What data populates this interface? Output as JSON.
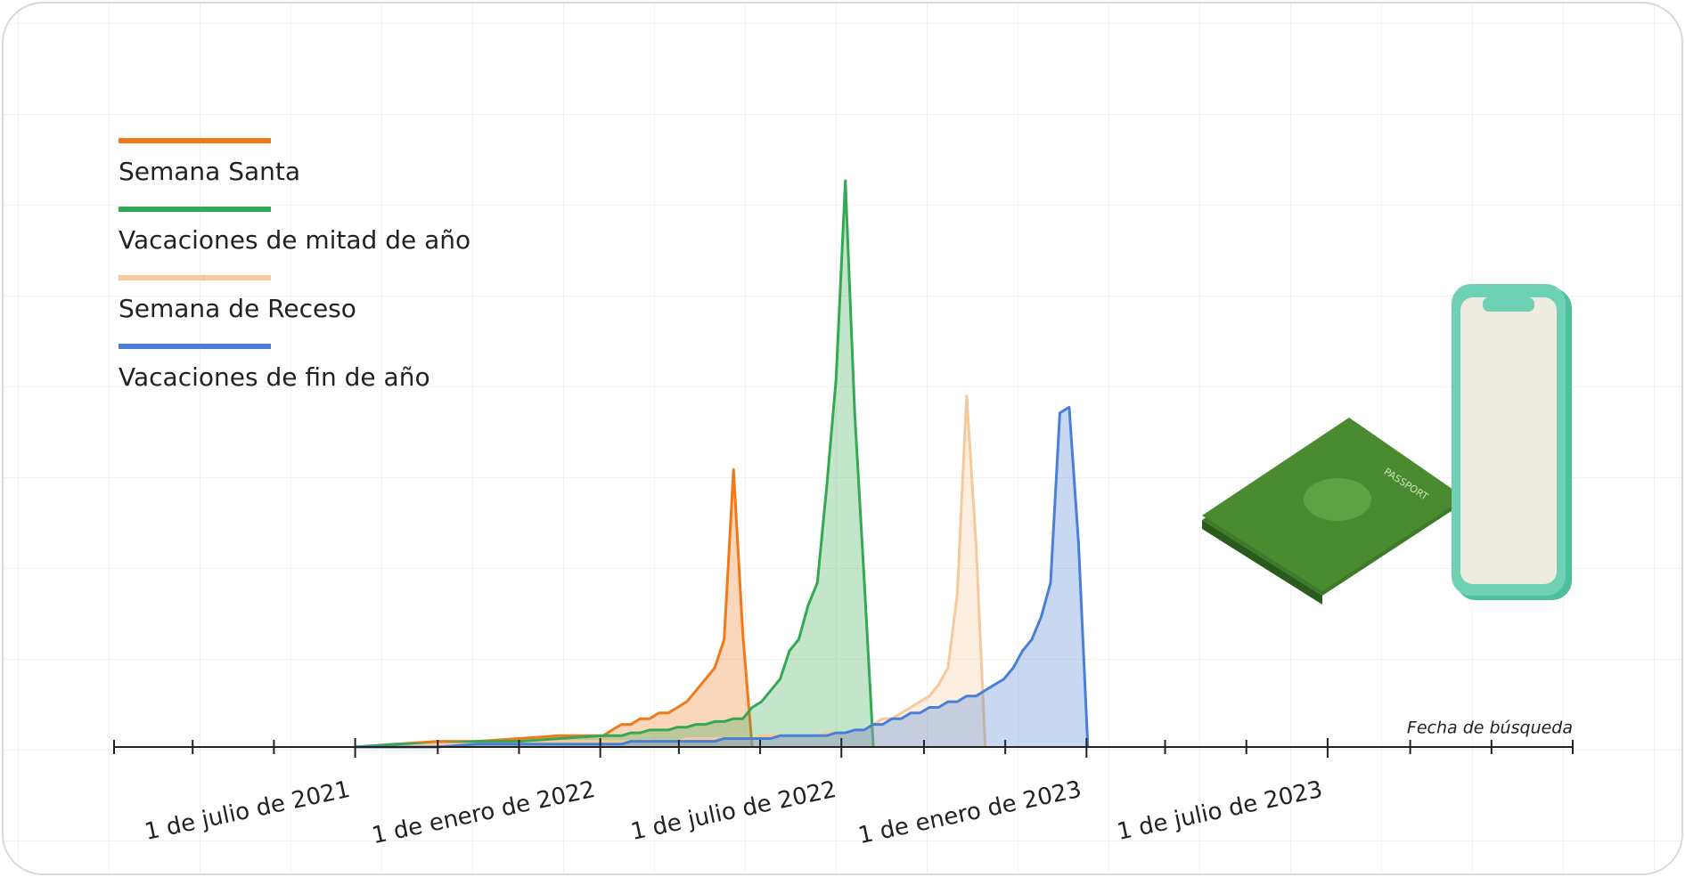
{
  "chart_data": {
    "type": "area",
    "axis_title": "Fecha de búsqueda",
    "xlim": [
      "2021-01-01",
      "2024-01-01"
    ],
    "xticks": [
      {
        "value": "2021-07-01",
        "label": "1 de julio de 2021"
      },
      {
        "value": "2022-01-01",
        "label": "1 de enero de 2022"
      },
      {
        "value": "2022-07-01",
        "label": "1 de julio de 2022"
      },
      {
        "value": "2023-01-01",
        "label": "1 de enero de 2023"
      },
      {
        "value": "2023-07-01",
        "label": "1 de julio de 2023"
      }
    ],
    "xminorticks": [
      "2021-01-01",
      "2021-03-01",
      "2021-05-01",
      "2021-09-01",
      "2021-11-01",
      "2022-03-01",
      "2022-05-01",
      "2022-09-01",
      "2022-11-01",
      "2023-03-01",
      "2023-05-01",
      "2023-09-01",
      "2023-11-01",
      "2024-01-01"
    ],
    "ylim": [
      0,
      100
    ],
    "x": [
      "2021-07-01",
      "2021-08-01",
      "2021-09-01",
      "2021-10-01",
      "2021-11-01",
      "2021-12-01",
      "2022-01-03",
      "2022-01-10",
      "2022-01-17",
      "2022-01-24",
      "2022-01-31",
      "2022-02-07",
      "2022-02-14",
      "2022-02-21",
      "2022-02-28",
      "2022-03-07",
      "2022-03-14",
      "2022-03-21",
      "2022-03-28",
      "2022-04-04",
      "2022-04-11",
      "2022-04-18",
      "2022-04-25",
      "2022-05-02",
      "2022-05-09",
      "2022-05-16",
      "2022-05-23",
      "2022-05-30",
      "2022-06-06",
      "2022-06-13",
      "2022-06-20",
      "2022-06-27",
      "2022-07-04",
      "2022-07-11",
      "2022-07-18",
      "2022-07-25",
      "2022-08-01",
      "2022-08-08",
      "2022-08-15",
      "2022-08-22",
      "2022-08-29",
      "2022-09-05",
      "2022-09-12",
      "2022-09-19",
      "2022-09-26",
      "2022-10-03",
      "2022-10-10",
      "2022-10-17",
      "2022-10-24",
      "2022-10-31",
      "2022-11-07",
      "2022-11-14",
      "2022-11-21",
      "2022-11-28",
      "2022-12-05",
      "2022-12-12",
      "2022-12-19",
      "2022-12-26",
      "2023-01-02"
    ],
    "series": [
      {
        "name": "Semana Santa",
        "color": "#f07a1a",
        "values": [
          0,
          0.5,
          1,
          1,
          1.5,
          2,
          2,
          3,
          4,
          4,
          5,
          5,
          6,
          6,
          7,
          8,
          10,
          12,
          14,
          19,
          49,
          20,
          0,
          null,
          null,
          null,
          null,
          null,
          null,
          null,
          null,
          null,
          null,
          null,
          null,
          null,
          null,
          null,
          null,
          null,
          null,
          null,
          null,
          null,
          null,
          null,
          null,
          null,
          null,
          null,
          null,
          null,
          null,
          null,
          null,
          null,
          null,
          null,
          null
        ]
      },
      {
        "name": "Vacaciones de mitad de año",
        "color": "#34a853",
        "values": [
          0,
          0.5,
          0.5,
          1,
          1,
          1.5,
          2,
          2,
          2,
          2.5,
          2.5,
          3,
          3,
          3,
          3.5,
          3.5,
          4,
          4,
          4.5,
          4.5,
          5,
          5,
          7,
          8,
          10,
          12,
          17,
          19,
          25,
          29,
          46,
          65,
          100,
          59,
          30,
          0,
          null,
          null,
          null,
          null,
          null,
          null,
          null,
          null,
          null,
          null,
          null,
          null,
          null,
          null,
          null,
          null,
          null,
          null,
          null,
          null,
          null,
          null,
          null
        ]
      },
      {
        "name": "Semana de Receso",
        "color": "#f5c99a",
        "values": [
          0,
          0,
          0.5,
          0.5,
          0.5,
          1,
          1,
          1,
          1,
          1,
          1,
          1,
          1,
          1,
          1,
          1.5,
          1.5,
          1.5,
          1.5,
          1.5,
          1.5,
          1.5,
          1.5,
          2,
          2,
          2,
          2,
          2,
          2,
          2,
          2.5,
          2.5,
          2.5,
          3,
          3,
          4,
          5,
          5,
          6,
          7,
          8,
          9,
          11,
          14,
          27,
          62,
          36,
          0,
          null,
          null,
          null,
          null,
          null,
          null,
          null,
          null,
          null,
          null,
          null
        ]
      },
      {
        "name": "Vacaciones de fin de año",
        "color": "#4a7fd8",
        "values": [
          0,
          0,
          0,
          0.5,
          0.5,
          0.5,
          0.5,
          0.5,
          0.5,
          1,
          1,
          1,
          1,
          1,
          1,
          1,
          1,
          1,
          1,
          1.5,
          1.5,
          1.5,
          1.5,
          1.5,
          1.5,
          2,
          2,
          2,
          2,
          2,
          2,
          2.5,
          2.5,
          3,
          3,
          4,
          4,
          5,
          5,
          6,
          6,
          7,
          7,
          8,
          8,
          9,
          9,
          10,
          11,
          12,
          14,
          17,
          19,
          23,
          29,
          59,
          60,
          36,
          0
        ]
      }
    ]
  }
}
